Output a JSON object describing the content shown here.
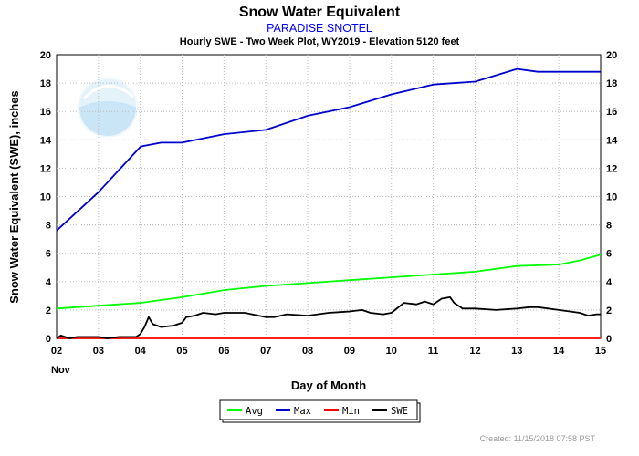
{
  "chart_data": {
    "type": "line",
    "title": "Snow Water Equivalent",
    "subtitle": "PARADISE SNOTEL",
    "subtitle2": "Hourly SWE - Two Week Plot, WY2019 -  Elevation 5120 feet",
    "xlabel": "Day of Month",
    "x_month_label": "Nov",
    "ylabel": "Snow Water Equivalent (SWE),  inches",
    "xlim": [
      2,
      15
    ],
    "ylim": [
      0,
      20
    ],
    "x_ticks": [
      "02",
      "03",
      "04",
      "05",
      "06",
      "07",
      "08",
      "09",
      "10",
      "11",
      "12",
      "13",
      "14",
      "15"
    ],
    "y_ticks": [
      0,
      2,
      4,
      6,
      8,
      10,
      12,
      14,
      16,
      18,
      20
    ],
    "grid": true,
    "legend_position": "bottom",
    "series": [
      {
        "name": "Avg",
        "color": "#00ff00",
        "x": [
          2,
          3,
          4,
          5,
          6,
          7,
          8,
          9,
          10,
          11,
          12,
          13,
          14,
          14.5,
          15
        ],
        "y": [
          2.1,
          2.3,
          2.5,
          2.9,
          3.4,
          3.7,
          3.9,
          4.1,
          4.3,
          4.5,
          4.7,
          5.1,
          5.2,
          5.5,
          5.9
        ]
      },
      {
        "name": "Max",
        "color": "#0000cc",
        "x": [
          2,
          3,
          4,
          4.05,
          4.5,
          5,
          6,
          7,
          8,
          9,
          10,
          11,
          12,
          13,
          13.5,
          14,
          15
        ],
        "y": [
          7.6,
          10.3,
          13.5,
          13.55,
          13.8,
          13.8,
          14.4,
          14.7,
          15.7,
          16.3,
          17.2,
          17.9,
          18.1,
          19.0,
          18.8,
          18.8,
          18.8
        ]
      },
      {
        "name": "Min",
        "color": "#ff0000",
        "x": [
          2,
          15
        ],
        "y": [
          0.0,
          0.0
        ]
      },
      {
        "name": "SWE",
        "color": "#000000",
        "x": [
          2,
          2.1,
          2.2,
          2.3,
          2.5,
          3,
          3.2,
          3.5,
          3.9,
          4.0,
          4.1,
          4.2,
          4.3,
          4.5,
          4.8,
          5.0,
          5.1,
          5.3,
          5.5,
          5.8,
          6.0,
          6.5,
          7.0,
          7.2,
          7.5,
          8.0,
          8.5,
          9.0,
          9.3,
          9.5,
          9.8,
          10.0,
          10.3,
          10.6,
          10.8,
          11.0,
          11.2,
          11.4,
          11.5,
          11.7,
          12.0,
          12.5,
          13.0,
          13.3,
          13.5,
          14.0,
          14.5,
          14.7,
          14.9,
          15.0
        ],
        "y": [
          0.0,
          0.2,
          0.1,
          0.0,
          0.1,
          0.1,
          0.0,
          0.1,
          0.1,
          0.3,
          0.8,
          1.5,
          1.0,
          0.8,
          0.9,
          1.1,
          1.5,
          1.6,
          1.8,
          1.7,
          1.8,
          1.8,
          1.5,
          1.5,
          1.7,
          1.6,
          1.8,
          1.9,
          2.0,
          1.8,
          1.7,
          1.8,
          2.5,
          2.4,
          2.6,
          2.4,
          2.8,
          2.9,
          2.5,
          2.1,
          2.1,
          2.0,
          2.1,
          2.2,
          2.2,
          2.0,
          1.8,
          1.6,
          1.7,
          1.7
        ]
      }
    ]
  },
  "footer": "Created: 11/15/2018 07:58 PST"
}
